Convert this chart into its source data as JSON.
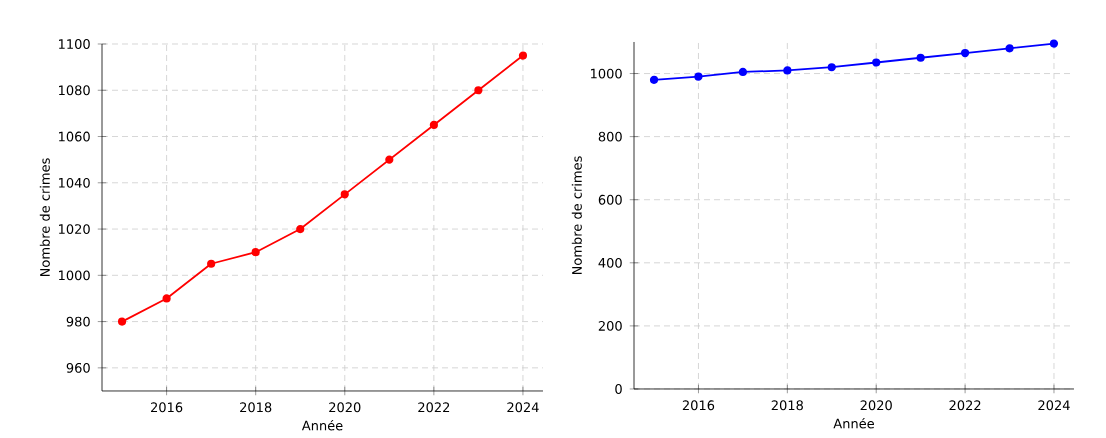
{
  "chart_data": [
    {
      "type": "line",
      "xlabel": "Année",
      "ylabel": "Nombre de crimes",
      "x": [
        2015,
        2016,
        2017,
        2018,
        2019,
        2020,
        2021,
        2022,
        2023,
        2024
      ],
      "series": [
        {
          "color": "#ff0000",
          "values": [
            980,
            990,
            1005,
            1010,
            1020,
            1035,
            1050,
            1065,
            1080,
            1095
          ]
        }
      ],
      "xlim": [
        2014.55,
        2024.45
      ],
      "ylim": [
        950,
        1100
      ],
      "xticks": [
        2016,
        2018,
        2020,
        2022,
        2024
      ],
      "yticks": [
        960,
        980,
        1000,
        1020,
        1040,
        1060,
        1080,
        1100
      ],
      "grid": true,
      "marker": "circle",
      "line_style": "solid"
    },
    {
      "type": "line",
      "xlabel": "Année",
      "ylabel": "Nombre de crimes",
      "x": [
        2015,
        2016,
        2017,
        2018,
        2019,
        2020,
        2021,
        2022,
        2023,
        2024
      ],
      "series": [
        {
          "color": "#0000ff",
          "values": [
            980,
            990,
            1005,
            1010,
            1020,
            1035,
            1050,
            1065,
            1080,
            1095
          ]
        }
      ],
      "xlim": [
        2014.55,
        2024.45
      ],
      "ylim": [
        0,
        1100
      ],
      "xticks": [
        2016,
        2018,
        2020,
        2022,
        2024
      ],
      "yticks": [
        0,
        200,
        400,
        600,
        800,
        1000
      ],
      "grid": true,
      "marker": "circle",
      "line_style": "solid"
    }
  ]
}
